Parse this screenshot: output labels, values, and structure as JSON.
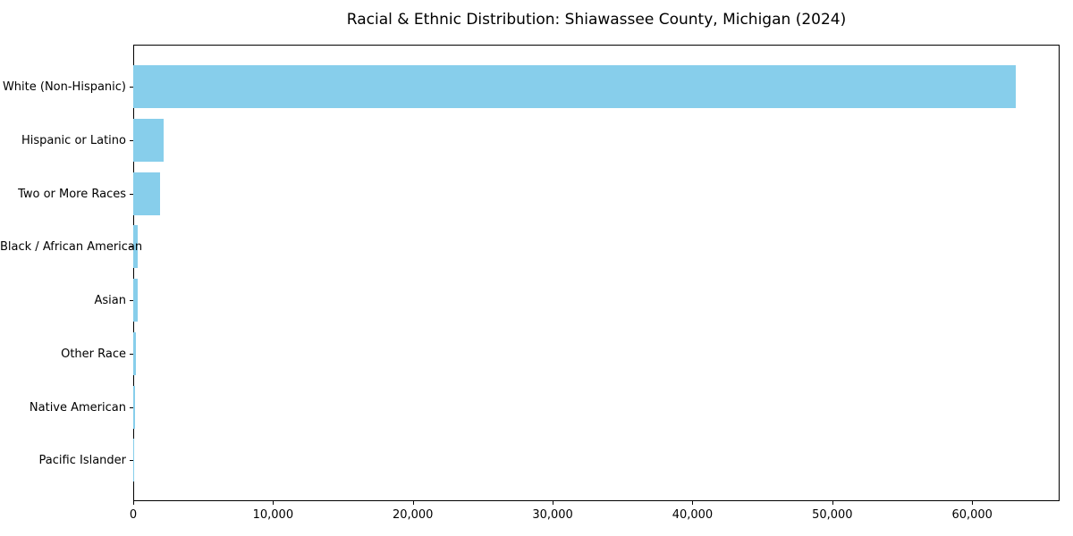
{
  "chart_data": {
    "type": "bar",
    "orientation": "horizontal",
    "title": "Racial & Ethnic Distribution: Shiawassee County, Michigan (2024)",
    "categories": [
      "White (Non-Hispanic)",
      "Hispanic or Latino",
      "Two or More Races",
      "Black / African American",
      "Asian",
      "Other Race",
      "Native American",
      "Pacific Islander"
    ],
    "values": [
      63100,
      2150,
      1950,
      320,
      310,
      215,
      130,
      20
    ],
    "xlabel": "",
    "ylabel": "",
    "xlim": [
      0,
      66255
    ],
    "x_ticks": [
      0,
      10000,
      20000,
      30000,
      40000,
      50000,
      60000
    ],
    "x_tick_labels": [
      "0",
      "10,000",
      "20,000",
      "30,000",
      "40,000",
      "50,000",
      "60,000"
    ],
    "bar_color": "#87CEEB",
    "background_color": "#ffffff",
    "spine_color": "#000000",
    "grid": false,
    "legend": null,
    "sort_order": "descending"
  }
}
